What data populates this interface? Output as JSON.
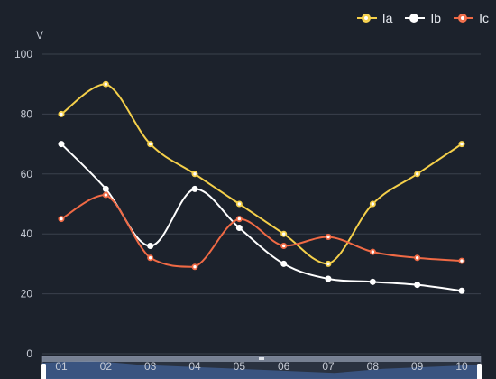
{
  "chart_data": {
    "type": "line",
    "title": "",
    "ylabel": "V",
    "xlabel": "",
    "categories": [
      "01",
      "02",
      "03",
      "04",
      "05",
      "06",
      "07",
      "08",
      "09",
      "10"
    ],
    "ylim": [
      0,
      100
    ],
    "yticks": [
      0,
      20,
      40,
      60,
      80,
      100
    ],
    "grid": true,
    "legend_position": "top-right",
    "smooth": true,
    "series": [
      {
        "name": "Ia",
        "color": "#f5d04a",
        "values": [
          80,
          90,
          70,
          60,
          50,
          40,
          30,
          50,
          60,
          70
        ]
      },
      {
        "name": "Ib",
        "color": "#ffffff",
        "values": [
          70,
          55,
          36,
          55,
          42,
          30,
          25,
          24,
          23,
          21
        ]
      },
      {
        "name": "Ic",
        "color": "#f06a45",
        "values": [
          45,
          53,
          32,
          29,
          45,
          36,
          39,
          34,
          32,
          31
        ]
      }
    ],
    "datazoom": {
      "start_percent": 0,
      "end_percent": 100,
      "handle_color": "#ffffff"
    }
  },
  "colors": {
    "background": "#1c222c",
    "grid": "#3a414d",
    "axis_text": "#c7ccd6"
  }
}
